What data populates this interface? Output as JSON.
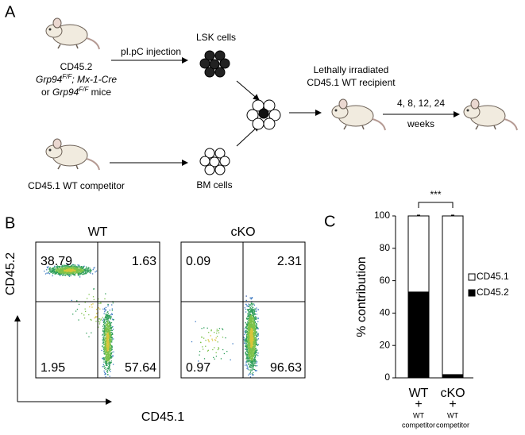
{
  "panel_a": {
    "label": "A",
    "donor_line1": "CD45.2",
    "donor_line2": [
      "Grp94",
      "F/F",
      "; Mx-1-Cre"
    ],
    "donor_line3": [
      "or ",
      "Grp94",
      "F/F",
      " mice"
    ],
    "injection": "pI.pC injection",
    "lsk": "LSK cells",
    "competitor": "CD45.1 WT competitor",
    "bm": "BM cells",
    "recipient_line1": "Lethally irradiated",
    "recipient_line2": "CD45.1 WT recipient",
    "timepoints": "4, 8, 12, 24",
    "weeks": "weeks"
  },
  "panel_b": {
    "label": "B",
    "y_label": "CD45.2",
    "x_label": "CD45.1",
    "plots": [
      {
        "title": "WT",
        "quadrants": [
          38.79,
          1.63,
          1.95,
          57.64
        ]
      },
      {
        "title": "cKO",
        "quadrants": [
          0.09,
          2.31,
          0.97,
          96.63
        ]
      }
    ]
  },
  "chart_data": {
    "type": "bar",
    "stacked": true,
    "panel_label": "C",
    "categories": [
      "WT",
      "cKO"
    ],
    "category_sublabels": [
      [
        "+",
        "WT",
        "competitor"
      ],
      [
        "+",
        "WT",
        "competitor"
      ]
    ],
    "ylabel": "% contribution",
    "ylim": [
      0,
      100
    ],
    "yticks": [
      0,
      20,
      40,
      60,
      80,
      100
    ],
    "series": [
      {
        "name": "CD45.1",
        "color": "#ffffff",
        "values": [
          47,
          98
        ],
        "errors": [
          0.5,
          0.5
        ]
      },
      {
        "name": "CD45.2",
        "color": "#000000",
        "values": [
          53,
          2
        ],
        "errors": [
          6,
          0.5
        ]
      }
    ],
    "annotation": "***"
  }
}
